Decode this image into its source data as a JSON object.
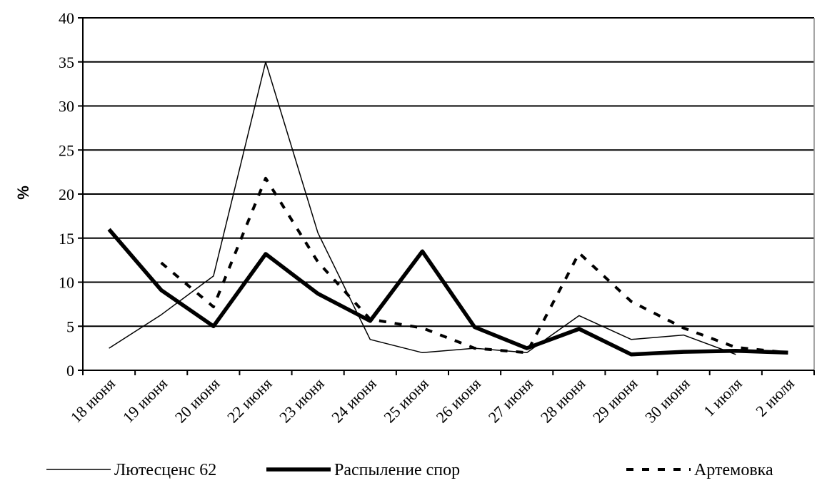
{
  "chart_data": {
    "type": "line",
    "categories": [
      "18 июня",
      "19 июня",
      "20 июня",
      "22 июня",
      "23 июня",
      "24 июня",
      "25 июня",
      "26 июня",
      "27 июня",
      "28 июня",
      "29 июня",
      "30 июня",
      "1 июля",
      "2 июля"
    ],
    "ylabel": "%",
    "ylim": [
      0,
      40
    ],
    "yticks": [
      0,
      5,
      10,
      15,
      20,
      25,
      30,
      35,
      40
    ],
    "grid": true,
    "legend_position": "bottom",
    "series": [
      {
        "name": "Лютесценс 62",
        "style": "thin-solid",
        "color": "#000000",
        "values": [
          2.5,
          6.3,
          10.7,
          35.0,
          15.6,
          3.5,
          2.0,
          2.5,
          2.0,
          6.2,
          3.5,
          4.0,
          1.8,
          null
        ]
      },
      {
        "name": "Распыление спор",
        "style": "thick-solid",
        "color": "#000000",
        "values": [
          16.0,
          9.1,
          5.0,
          13.2,
          8.7,
          5.6,
          13.5,
          4.9,
          2.5,
          4.7,
          1.8,
          2.1,
          2.2,
          2.0
        ]
      },
      {
        "name": "Артемовка",
        "style": "dashed",
        "color": "#000000",
        "values": [
          null,
          12.2,
          7.2,
          21.8,
          12.3,
          5.8,
          4.8,
          2.5,
          2.0,
          13.3,
          7.8,
          4.8,
          2.6,
          2.0
        ]
      }
    ]
  }
}
